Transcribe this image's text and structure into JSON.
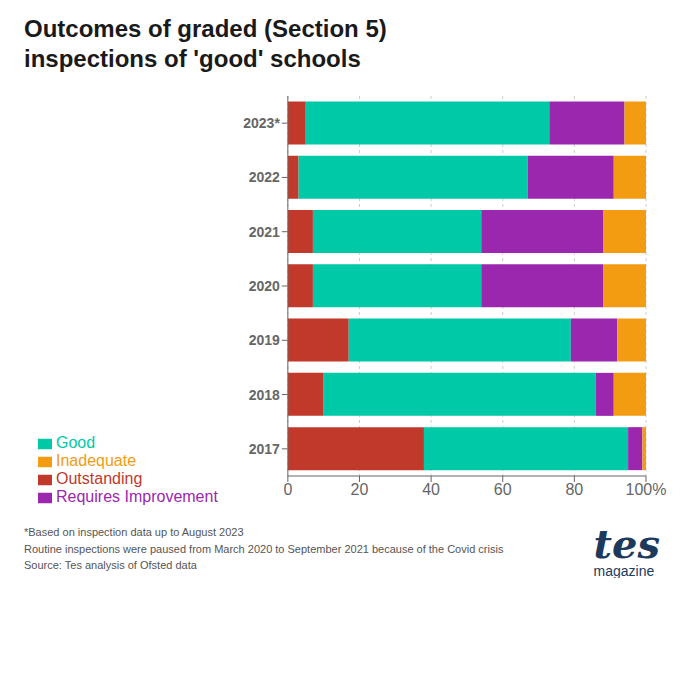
{
  "chart_data": {
    "type": "bar",
    "orientation": "horizontal",
    "stacked": true,
    "title": "Outcomes of graded (Section 5)\ninspections of 'good' schools",
    "categories": [
      "2023*",
      "2022",
      "2021",
      "2020",
      "2019",
      "2018",
      "2017"
    ],
    "series": [
      {
        "name": "Outstanding",
        "color": "#c0392b",
        "values": [
          5,
          3,
          7,
          7,
          17,
          10,
          38
        ]
      },
      {
        "name": "Good",
        "color": "#00c9a7",
        "values": [
          68,
          64,
          47,
          47,
          62,
          76,
          57
        ]
      },
      {
        "name": "Requires Improvement",
        "color": "#9b27af",
        "values": [
          21,
          24,
          34,
          34,
          13,
          5,
          4
        ]
      },
      {
        "name": "Inadequate",
        "color": "#f39c12",
        "values": [
          6,
          9,
          12,
          12,
          8,
          9,
          1
        ]
      }
    ],
    "xlim": [
      0,
      100
    ],
    "xticks": [
      0,
      20,
      40,
      60,
      80,
      {
        "value": 100,
        "label": "100%"
      }
    ],
    "grid": true,
    "legend": "bottom",
    "annotations": [
      "*Based on inspection data up to August 2023",
      "Routine inspections were paused from March 2020 to September 2021 because of the Covid crisis",
      "Source: Tes analysis of Ofsted data",
      "tes",
      "magazine"
    ]
  }
}
